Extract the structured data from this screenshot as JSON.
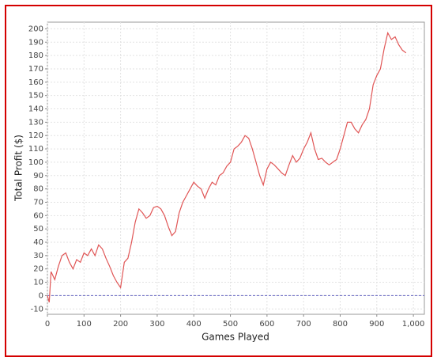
{
  "chart_data": {
    "type": "line",
    "x_label": "Games Played",
    "y_label": "Total Profit ($)",
    "x": [
      0,
      5,
      10,
      20,
      30,
      40,
      50,
      60,
      70,
      80,
      90,
      100,
      110,
      120,
      130,
      140,
      150,
      160,
      170,
      180,
      190,
      200,
      210,
      220,
      230,
      240,
      250,
      260,
      270,
      280,
      290,
      300,
      310,
      320,
      330,
      340,
      350,
      360,
      370,
      380,
      390,
      400,
      410,
      420,
      430,
      440,
      450,
      460,
      470,
      480,
      490,
      500,
      510,
      520,
      530,
      540,
      550,
      560,
      570,
      580,
      590,
      600,
      610,
      620,
      630,
      640,
      650,
      660,
      670,
      680,
      690,
      700,
      710,
      720,
      730,
      740,
      750,
      760,
      770,
      780,
      790,
      800,
      810,
      820,
      830,
      840,
      850,
      860,
      870,
      880,
      890,
      900,
      910,
      920,
      930,
      940,
      950,
      960,
      970,
      980
    ],
    "series": [
      {
        "name": "Total Profit",
        "color": "#e05555",
        "values": [
          0,
          -5,
          18,
          12,
          22,
          30,
          32,
          25,
          20,
          27,
          25,
          32,
          30,
          35,
          30,
          38,
          35,
          28,
          22,
          15,
          10,
          6,
          25,
          28,
          40,
          55,
          65,
          62,
          58,
          60,
          66,
          67,
          65,
          60,
          52,
          45,
          48,
          62,
          70,
          75,
          80,
          85,
          82,
          80,
          73,
          80,
          85,
          83,
          90,
          92,
          97,
          100,
          110,
          112,
          115,
          120,
          118,
          110,
          100,
          90,
          83,
          95,
          100,
          98,
          95,
          92,
          90,
          98,
          105,
          100,
          103,
          110,
          115,
          122,
          110,
          102,
          103,
          100,
          98,
          100,
          102,
          110,
          120,
          130,
          130,
          125,
          122,
          128,
          132,
          140,
          158,
          165,
          170,
          185,
          197,
          192,
          194,
          188,
          184,
          182
        ]
      }
    ],
    "xlim": [
      0,
      1030
    ],
    "ylim": [
      -14,
      205
    ],
    "xticks": [
      0,
      100,
      200,
      300,
      400,
      500,
      600,
      700,
      800,
      900,
      {
        "value": 1000,
        "label": "1,000"
      }
    ],
    "yticks": [
      -10,
      0,
      10,
      20,
      30,
      40,
      50,
      60,
      70,
      80,
      90,
      100,
      110,
      120,
      130,
      140,
      150,
      160,
      170,
      180,
      190,
      200
    ],
    "grid": true,
    "reference_line": 0,
    "reference_color": "#6060c0"
  }
}
